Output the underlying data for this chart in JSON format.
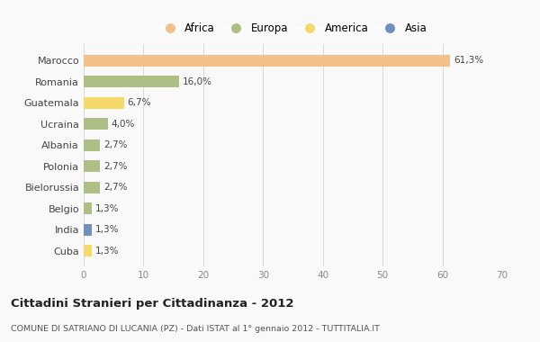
{
  "countries": [
    "Marocco",
    "Romania",
    "Guatemala",
    "Ucraina",
    "Albania",
    "Polonia",
    "Bielorussia",
    "Belgio",
    "India",
    "Cuba"
  ],
  "values": [
    61.3,
    16.0,
    6.7,
    4.0,
    2.7,
    2.7,
    2.7,
    1.3,
    1.3,
    1.3
  ],
  "labels": [
    "61,3%",
    "16,0%",
    "6,7%",
    "4,0%",
    "2,7%",
    "2,7%",
    "2,7%",
    "1,3%",
    "1,3%",
    "1,3%"
  ],
  "colors": [
    "#F2C08A",
    "#AEBF85",
    "#F5D96B",
    "#AEBF85",
    "#AEBF85",
    "#AEBF85",
    "#AEBF85",
    "#AEBF85",
    "#7090C0",
    "#F5D96B"
  ],
  "legend": [
    {
      "label": "Africa",
      "color": "#F2C08A"
    },
    {
      "label": "Europa",
      "color": "#AEBF85"
    },
    {
      "label": "America",
      "color": "#F5D96B"
    },
    {
      "label": "Asia",
      "color": "#7090C0"
    }
  ],
  "xlim": [
    0,
    70
  ],
  "xticks": [
    0,
    10,
    20,
    30,
    40,
    50,
    60,
    70
  ],
  "title": "Cittadini Stranieri per Cittadinanza - 2012",
  "subtitle": "COMUNE DI SATRIANO DI LUCANIA (PZ) - Dati ISTAT al 1° gennaio 2012 - TUTTITALIA.IT",
  "background_color": "#f9f9f9",
  "bar_height": 0.55
}
